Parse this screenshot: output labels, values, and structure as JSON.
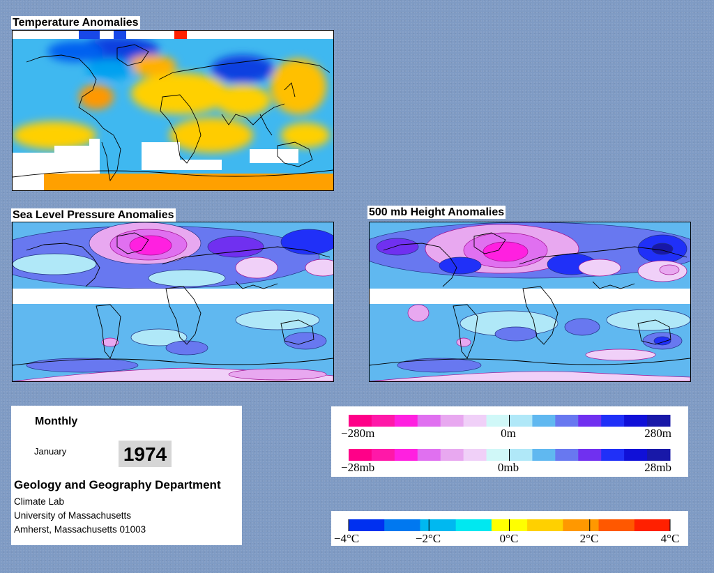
{
  "panels": {
    "temperature": {
      "title": "Temperature Anomalies"
    },
    "slp": {
      "title": "Sea Level Pressure Anomalies"
    },
    "height500": {
      "title": "500 mb Height Anomalies"
    }
  },
  "info": {
    "period": "Monthly",
    "month": "January",
    "year": "1974",
    "department": "Geology and Geography Department",
    "lab": "Climate Lab",
    "university": "University of Massachusetts",
    "address": "Amherst, Massachusetts 01003"
  },
  "legend_height": {
    "min": "−280m",
    "mid": "0m",
    "max": "280m"
  },
  "legend_pressure": {
    "min": "−28mb",
    "mid": "0mb",
    "max": "28mb"
  },
  "legend_temperature": {
    "ticks": [
      "−4°C",
      "−2°C",
      "0°C",
      "2°C",
      "4°C"
    ]
  },
  "colors": {
    "background": "#7f9bc4",
    "anomaly_scale": [
      "#ff0088",
      "#ff18a8",
      "#ff20e0",
      "#e070f0",
      "#e8a8f0",
      "#f0d0f8",
      "#d0f8f8",
      "#b0e8f8",
      "#60b8f0",
      "#6878f0",
      "#7030f0",
      "#2030f8",
      "#1010d8",
      "#1818a8"
    ],
    "temperature_scale": [
      "#0030f0",
      "#0078f0",
      "#00b8f0",
      "#00e8f0",
      "#ffff00",
      "#ffd000",
      "#ff9800",
      "#ff5800",
      "#ff2000"
    ]
  }
}
